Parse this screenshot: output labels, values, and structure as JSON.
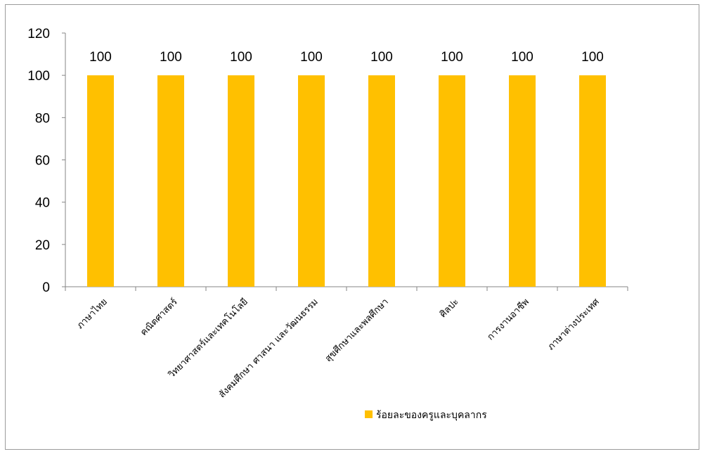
{
  "chart_data": {
    "type": "bar",
    "categories": [
      "ภาษาไทย",
      "คณิตศาสตร์",
      "วิทยาศาสตร์และเทคโนโลยี",
      "สังคมศึกษา ศาสนา และวัฒนธรรม",
      "สุขศึกษาและพลศึกษา",
      "ศิลปะ",
      "การงานอาชีพ",
      "ภาษาต่างประเทศ"
    ],
    "series": [
      {
        "name": "ร้อยละของครูและบุคลากร",
        "values": [
          100,
          100,
          100,
          100,
          100,
          100,
          100,
          100
        ],
        "color": "#FFC000"
      }
    ],
    "ylim": [
      0,
      120
    ],
    "yticks": [
      0,
      20,
      40,
      60,
      80,
      100,
      120
    ],
    "data_labels": true,
    "grid": false,
    "legend_position": "bottom-right",
    "axis_color": "#868686"
  }
}
